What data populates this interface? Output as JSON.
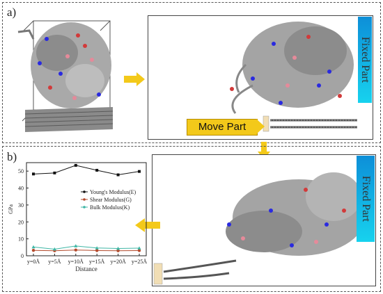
{
  "panel_a": {
    "label": "a)",
    "fixed_label": "Fixed Part",
    "move_label": "Move Part"
  },
  "panel_b": {
    "label": "b)",
    "fixed_label": "Fixed Part"
  },
  "colors": {
    "fixed_gradient_top": "#0d8fd8",
    "fixed_gradient_bottom": "#17d2ee",
    "arrow": "#f3c91a"
  },
  "chart_data": {
    "type": "line",
    "categories": [
      "y=0Å",
      "y=5Å",
      "y=10Å",
      "y=15Å",
      "y=20Å",
      "y=25Å"
    ],
    "xlabel": "Distance",
    "ylabel": "GPa",
    "ylim": [
      0,
      55
    ],
    "yticks": [
      0,
      10,
      20,
      30,
      40,
      50
    ],
    "legend_position": "right",
    "series": [
      {
        "name": "Young's Modulus(E)",
        "color": "#111111",
        "marker": "square",
        "values": [
          48.3,
          48.9,
          53.4,
          50.5,
          47.8,
          49.8
        ]
      },
      {
        "name": "Shear Modulus(G)",
        "color": "#b34a2c",
        "marker": "circle",
        "values": [
          3.2,
          3.0,
          3.4,
          3.1,
          3.0,
          3.1
        ]
      },
      {
        "name": "Bulk  Modulus(K)",
        "color": "#3fb6a5",
        "marker": "triangle",
        "values": [
          5.2,
          3.9,
          5.8,
          4.6,
          4.3,
          4.5
        ]
      }
    ]
  }
}
